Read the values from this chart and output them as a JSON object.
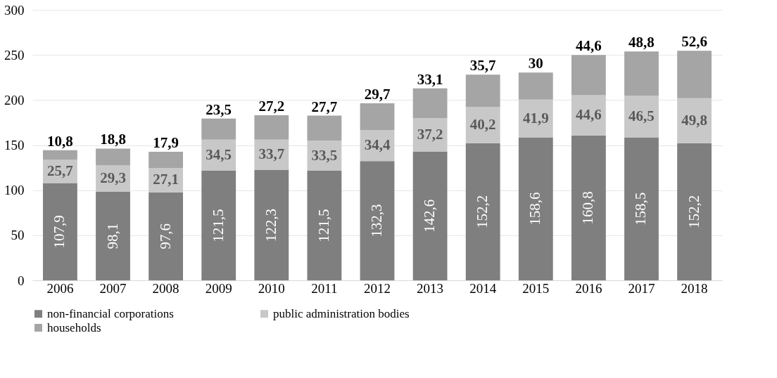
{
  "chart_data": {
    "type": "bar",
    "stacked": true,
    "categories": [
      "2006",
      "2007",
      "2008",
      "2009",
      "2010",
      "2011",
      "2012",
      "2013",
      "2014",
      "2015",
      "2016",
      "2017",
      "2018"
    ],
    "series": [
      {
        "name": "non-financial corporations",
        "color": "#7f7f7f",
        "values": [
          107.9,
          98.1,
          97.6,
          121.5,
          122.3,
          121.5,
          132.3,
          142.6,
          152.2,
          158.6,
          160.8,
          158.5,
          152.2
        ],
        "value_labels": [
          "107,9",
          "98,1",
          "97,6",
          "121,5",
          "122,3",
          "121,5",
          "132,3",
          "142,6",
          "152,2",
          "158,6",
          "160,8",
          "158,5",
          "152,2"
        ]
      },
      {
        "name": "public administration bodies",
        "color": "#c8c8c8",
        "values": [
          25.7,
          29.3,
          27.1,
          34.5,
          33.7,
          33.5,
          34.4,
          37.2,
          40.2,
          41.9,
          44.6,
          46.5,
          49.8
        ],
        "value_labels": [
          "25,7",
          "29,3",
          "27,1",
          "34,5",
          "33,7",
          "33,5",
          "34,4",
          "37,2",
          "40,2",
          "41,9",
          "44,6",
          "46,5",
          "49,8"
        ]
      },
      {
        "name": "households",
        "color": "#a5a5a5",
        "values": [
          10.8,
          18.8,
          17.9,
          23.5,
          27.2,
          27.7,
          29.7,
          33.1,
          35.7,
          30,
          44.6,
          48.8,
          52.6
        ],
        "value_labels": [
          "10,8",
          "18,8",
          "17,9",
          "23,5",
          "27,2",
          "27,7",
          "29,7",
          "33,1",
          "35,7",
          "30",
          "44,6",
          "48,8",
          "52,6"
        ]
      }
    ],
    "ylim": [
      0,
      300
    ],
    "yticks": [
      0,
      50,
      100,
      150,
      200,
      250,
      300
    ],
    "grid": "y",
    "legend": "bottom"
  }
}
